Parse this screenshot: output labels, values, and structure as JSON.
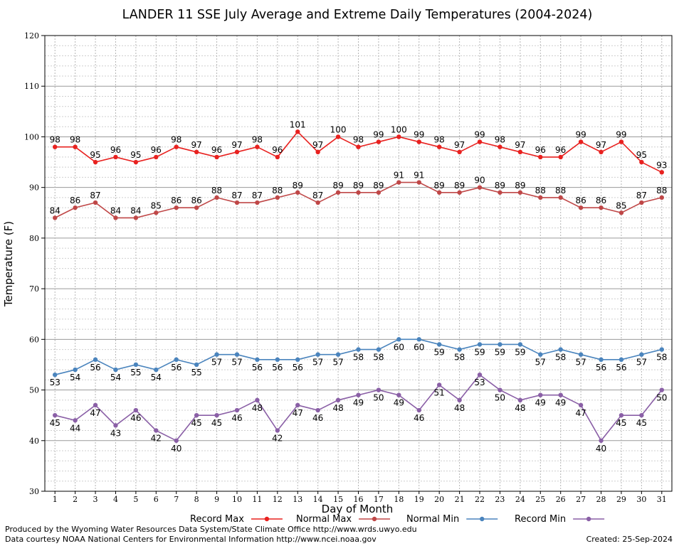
{
  "chart_data": {
    "type": "line",
    "title": "LANDER 11 SSE July Average and Extreme Daily Temperatures (2004-2024)",
    "xlabel": "Day of Month",
    "ylabel": "Temperature (F)",
    "ylim": [
      30,
      120
    ],
    "yticks": [
      30,
      40,
      50,
      60,
      70,
      80,
      90,
      100,
      110,
      120
    ],
    "grid": true,
    "legend_position": "bottom",
    "x": [
      1,
      2,
      3,
      4,
      5,
      6,
      7,
      8,
      9,
      10,
      11,
      12,
      13,
      14,
      15,
      16,
      17,
      18,
      19,
      20,
      21,
      22,
      23,
      24,
      25,
      26,
      27,
      28,
      29,
      30,
      31
    ],
    "series": [
      {
        "name": "Record Max",
        "color": "#e8211f",
        "label_pos": "above",
        "values": [
          98,
          98,
          95,
          96,
          95,
          96,
          98,
          97,
          96,
          97,
          98,
          96,
          101,
          97,
          100,
          98,
          99,
          100,
          99,
          98,
          97,
          99,
          98,
          97,
          96,
          96,
          99,
          97,
          99,
          95,
          93
        ]
      },
      {
        "name": "Normal Max",
        "color": "#bf4747",
        "label_pos": "above",
        "values": [
          84,
          86,
          87,
          84,
          84,
          85,
          86,
          86,
          88,
          87,
          87,
          88,
          89,
          87,
          89,
          89,
          89,
          91,
          91,
          89,
          89,
          90,
          89,
          89,
          88,
          88,
          86,
          86,
          85,
          87,
          88
        ]
      },
      {
        "name": "Normal Min",
        "color": "#4a84bd",
        "label_pos": "below",
        "values": [
          53,
          54,
          56,
          54,
          55,
          54,
          56,
          55,
          57,
          57,
          56,
          56,
          56,
          57,
          57,
          58,
          58,
          60,
          60,
          59,
          58,
          59,
          59,
          59,
          57,
          58,
          57,
          56,
          56,
          57,
          58
        ]
      },
      {
        "name": "Record Min",
        "color": "#8a5fa6",
        "label_pos": "below",
        "values": [
          45,
          44,
          47,
          43,
          46,
          42,
          40,
          45,
          45,
          46,
          48,
          42,
          47,
          46,
          48,
          49,
          50,
          49,
          46,
          51,
          48,
          53,
          50,
          48,
          49,
          49,
          47,
          40,
          45,
          45,
          50
        ]
      }
    ]
  },
  "footer": {
    "produced_by": "Produced by the Wyoming Water Resources Data System/State Climate Office http://www.wrds.uwyo.edu",
    "data_courtesy": "Data courtesy NOAA National Centers for Environmental Information http://www.ncei.noaa.gov",
    "created": "Created: 25-Sep-2024"
  }
}
